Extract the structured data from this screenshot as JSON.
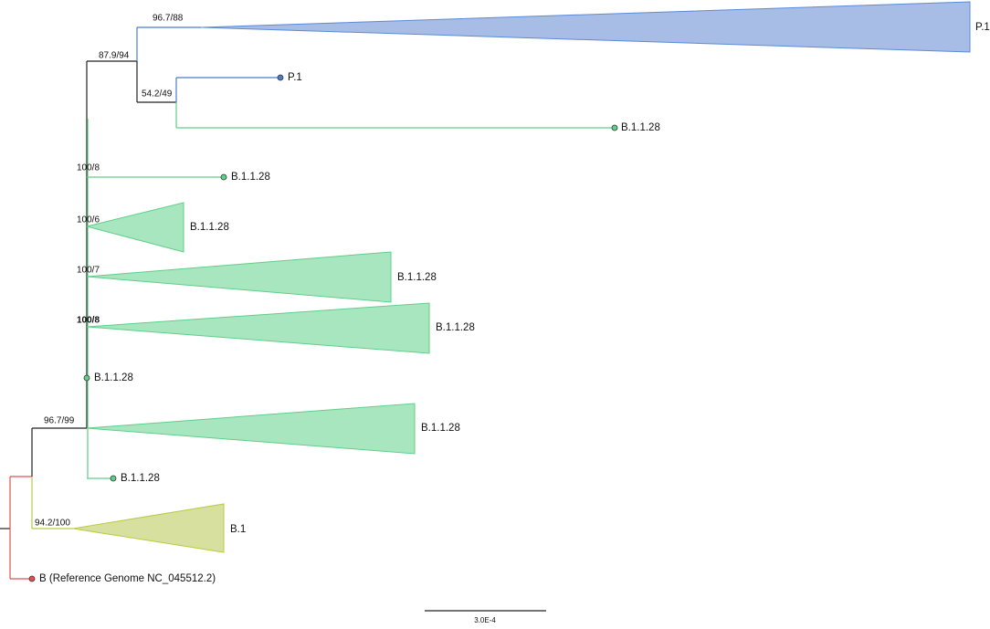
{
  "tree": {
    "supports": [
      "96.7/88",
      "87.9/94",
      "54.2/49",
      "100/8",
      "100/6",
      "100/7",
      "100/8",
      "96.7/99",
      "94.2/100"
    ],
    "labels": [
      "P.1",
      "P.1",
      "B.1.1.28",
      "B.1.1.28",
      "B.1.1.28",
      "B.1.1.28",
      "B.1.1.28",
      "B.1.1.28",
      "B.1.1.28",
      "B.1.1.28",
      "B.1",
      "B (Reference Genome NC_045512.2)"
    ],
    "scale_bar": "3.0E-4"
  }
}
